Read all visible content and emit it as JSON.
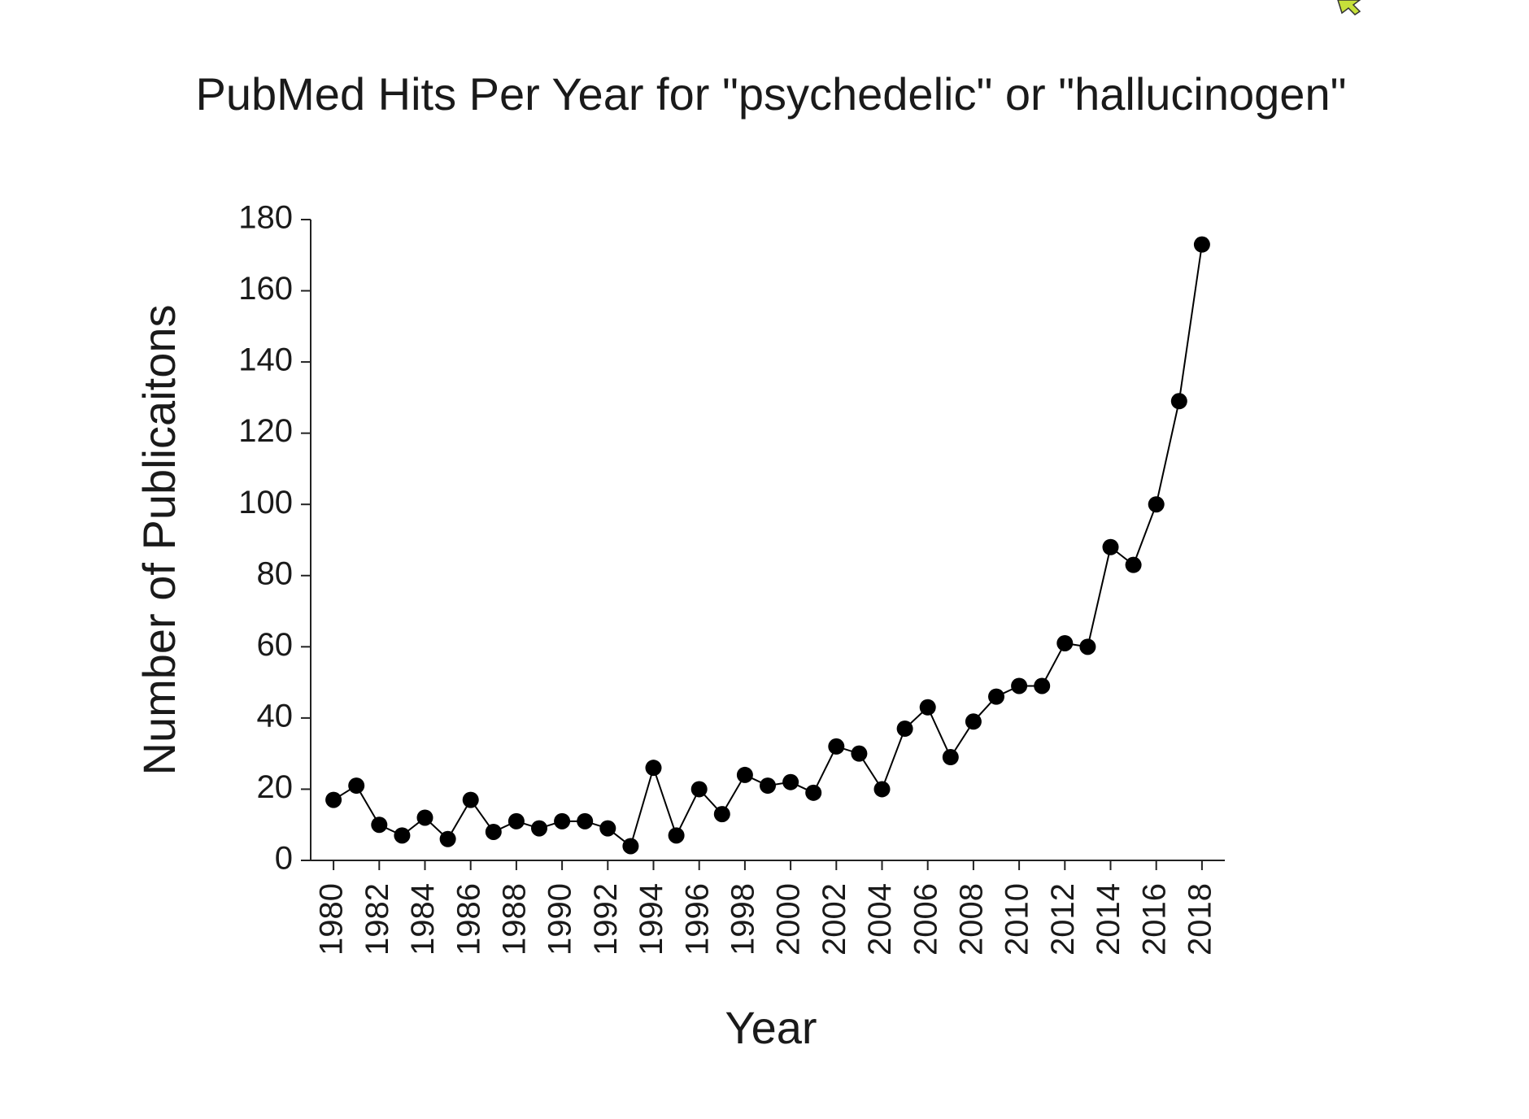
{
  "chart_data": {
    "type": "line",
    "title": "PubMed Hits Per Year for \"psychedelic\" or \"hallucinogen\"",
    "x_label": "Year",
    "y_label": "Number of Publicaitons",
    "x": [
      1980,
      1981,
      1982,
      1983,
      1984,
      1985,
      1986,
      1987,
      1988,
      1989,
      1990,
      1991,
      1992,
      1993,
      1994,
      1995,
      1996,
      1997,
      1998,
      1999,
      2000,
      2001,
      2002,
      2003,
      2004,
      2005,
      2006,
      2007,
      2008,
      2009,
      2010,
      2011,
      2012,
      2013,
      2014,
      2015,
      2016,
      2017,
      2018
    ],
    "series": [
      {
        "color": "#000000",
        "values": [
          17,
          21,
          10,
          7,
          12,
          6,
          17,
          8,
          11,
          9,
          11,
          11,
          9,
          4,
          26,
          7,
          20,
          13,
          24,
          21,
          22,
          19,
          32,
          30,
          20,
          37,
          43,
          29,
          39,
          46,
          49,
          49,
          61,
          60,
          88,
          83,
          100,
          129,
          173
        ]
      }
    ],
    "xlim": [
      1979,
      2019
    ],
    "xticks": [
      1980,
      1982,
      1984,
      1986,
      1988,
      1990,
      1992,
      1994,
      1996,
      1998,
      2000,
      2002,
      2004,
      2006,
      2008,
      2010,
      2012,
      2014,
      2016,
      2018
    ],
    "ylim": [
      0,
      180
    ],
    "yticks": [
      0,
      20,
      40,
      60,
      80,
      100,
      120,
      140,
      160,
      180
    ],
    "grid": false,
    "markers": true
  }
}
